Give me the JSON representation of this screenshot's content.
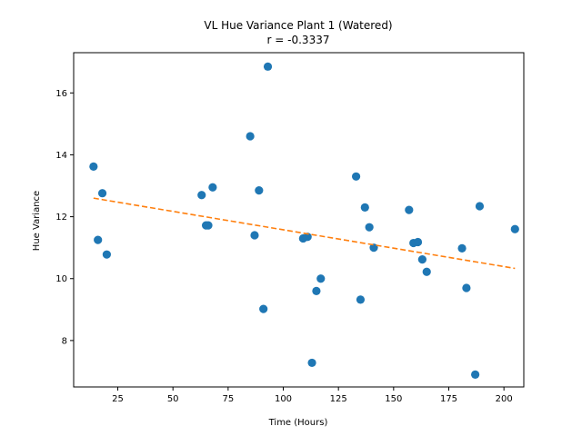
{
  "chart_data": {
    "type": "scatter",
    "title": "VL Hue Variance Plant 1 (Watered)",
    "subtitle": "r = -0.3337",
    "xlabel": "Time (Hours)",
    "ylabel": "Hue Variance",
    "xlim": [
      5,
      209
    ],
    "ylim": [
      6.5,
      17.3
    ],
    "xticks": [
      25,
      50,
      75,
      100,
      125,
      150,
      175,
      200
    ],
    "yticks": [
      8,
      10,
      12,
      14,
      16
    ],
    "grid": false,
    "point_color": "#1f77b4",
    "trend_color": "#ff7f0e",
    "points": [
      {
        "x": 14,
        "y": 13.62
      },
      {
        "x": 16,
        "y": 11.25
      },
      {
        "x": 18,
        "y": 12.76
      },
      {
        "x": 20,
        "y": 10.78
      },
      {
        "x": 63,
        "y": 12.7
      },
      {
        "x": 65,
        "y": 11.72
      },
      {
        "x": 66,
        "y": 11.72
      },
      {
        "x": 68,
        "y": 12.95
      },
      {
        "x": 85,
        "y": 14.6
      },
      {
        "x": 87,
        "y": 11.4
      },
      {
        "x": 89,
        "y": 12.85
      },
      {
        "x": 91,
        "y": 9.02
      },
      {
        "x": 93,
        "y": 16.85
      },
      {
        "x": 109,
        "y": 11.3
      },
      {
        "x": 111,
        "y": 11.35
      },
      {
        "x": 113,
        "y": 7.28
      },
      {
        "x": 115,
        "y": 9.6
      },
      {
        "x": 117,
        "y": 10.0
      },
      {
        "x": 133,
        "y": 13.3
      },
      {
        "x": 135,
        "y": 9.32
      },
      {
        "x": 137,
        "y": 12.3
      },
      {
        "x": 139,
        "y": 11.66
      },
      {
        "x": 141,
        "y": 11.0
      },
      {
        "x": 157,
        "y": 12.22
      },
      {
        "x": 159,
        "y": 11.15
      },
      {
        "x": 161,
        "y": 11.18
      },
      {
        "x": 163,
        "y": 10.62
      },
      {
        "x": 165,
        "y": 10.22
      },
      {
        "x": 181,
        "y": 10.98
      },
      {
        "x": 183,
        "y": 9.7
      },
      {
        "x": 187,
        "y": 6.9
      },
      {
        "x": 189,
        "y": 12.34
      },
      {
        "x": 205,
        "y": 11.6
      }
    ],
    "trend_line": {
      "x": [
        14,
        205
      ],
      "y": [
        12.6,
        10.33
      ]
    }
  }
}
